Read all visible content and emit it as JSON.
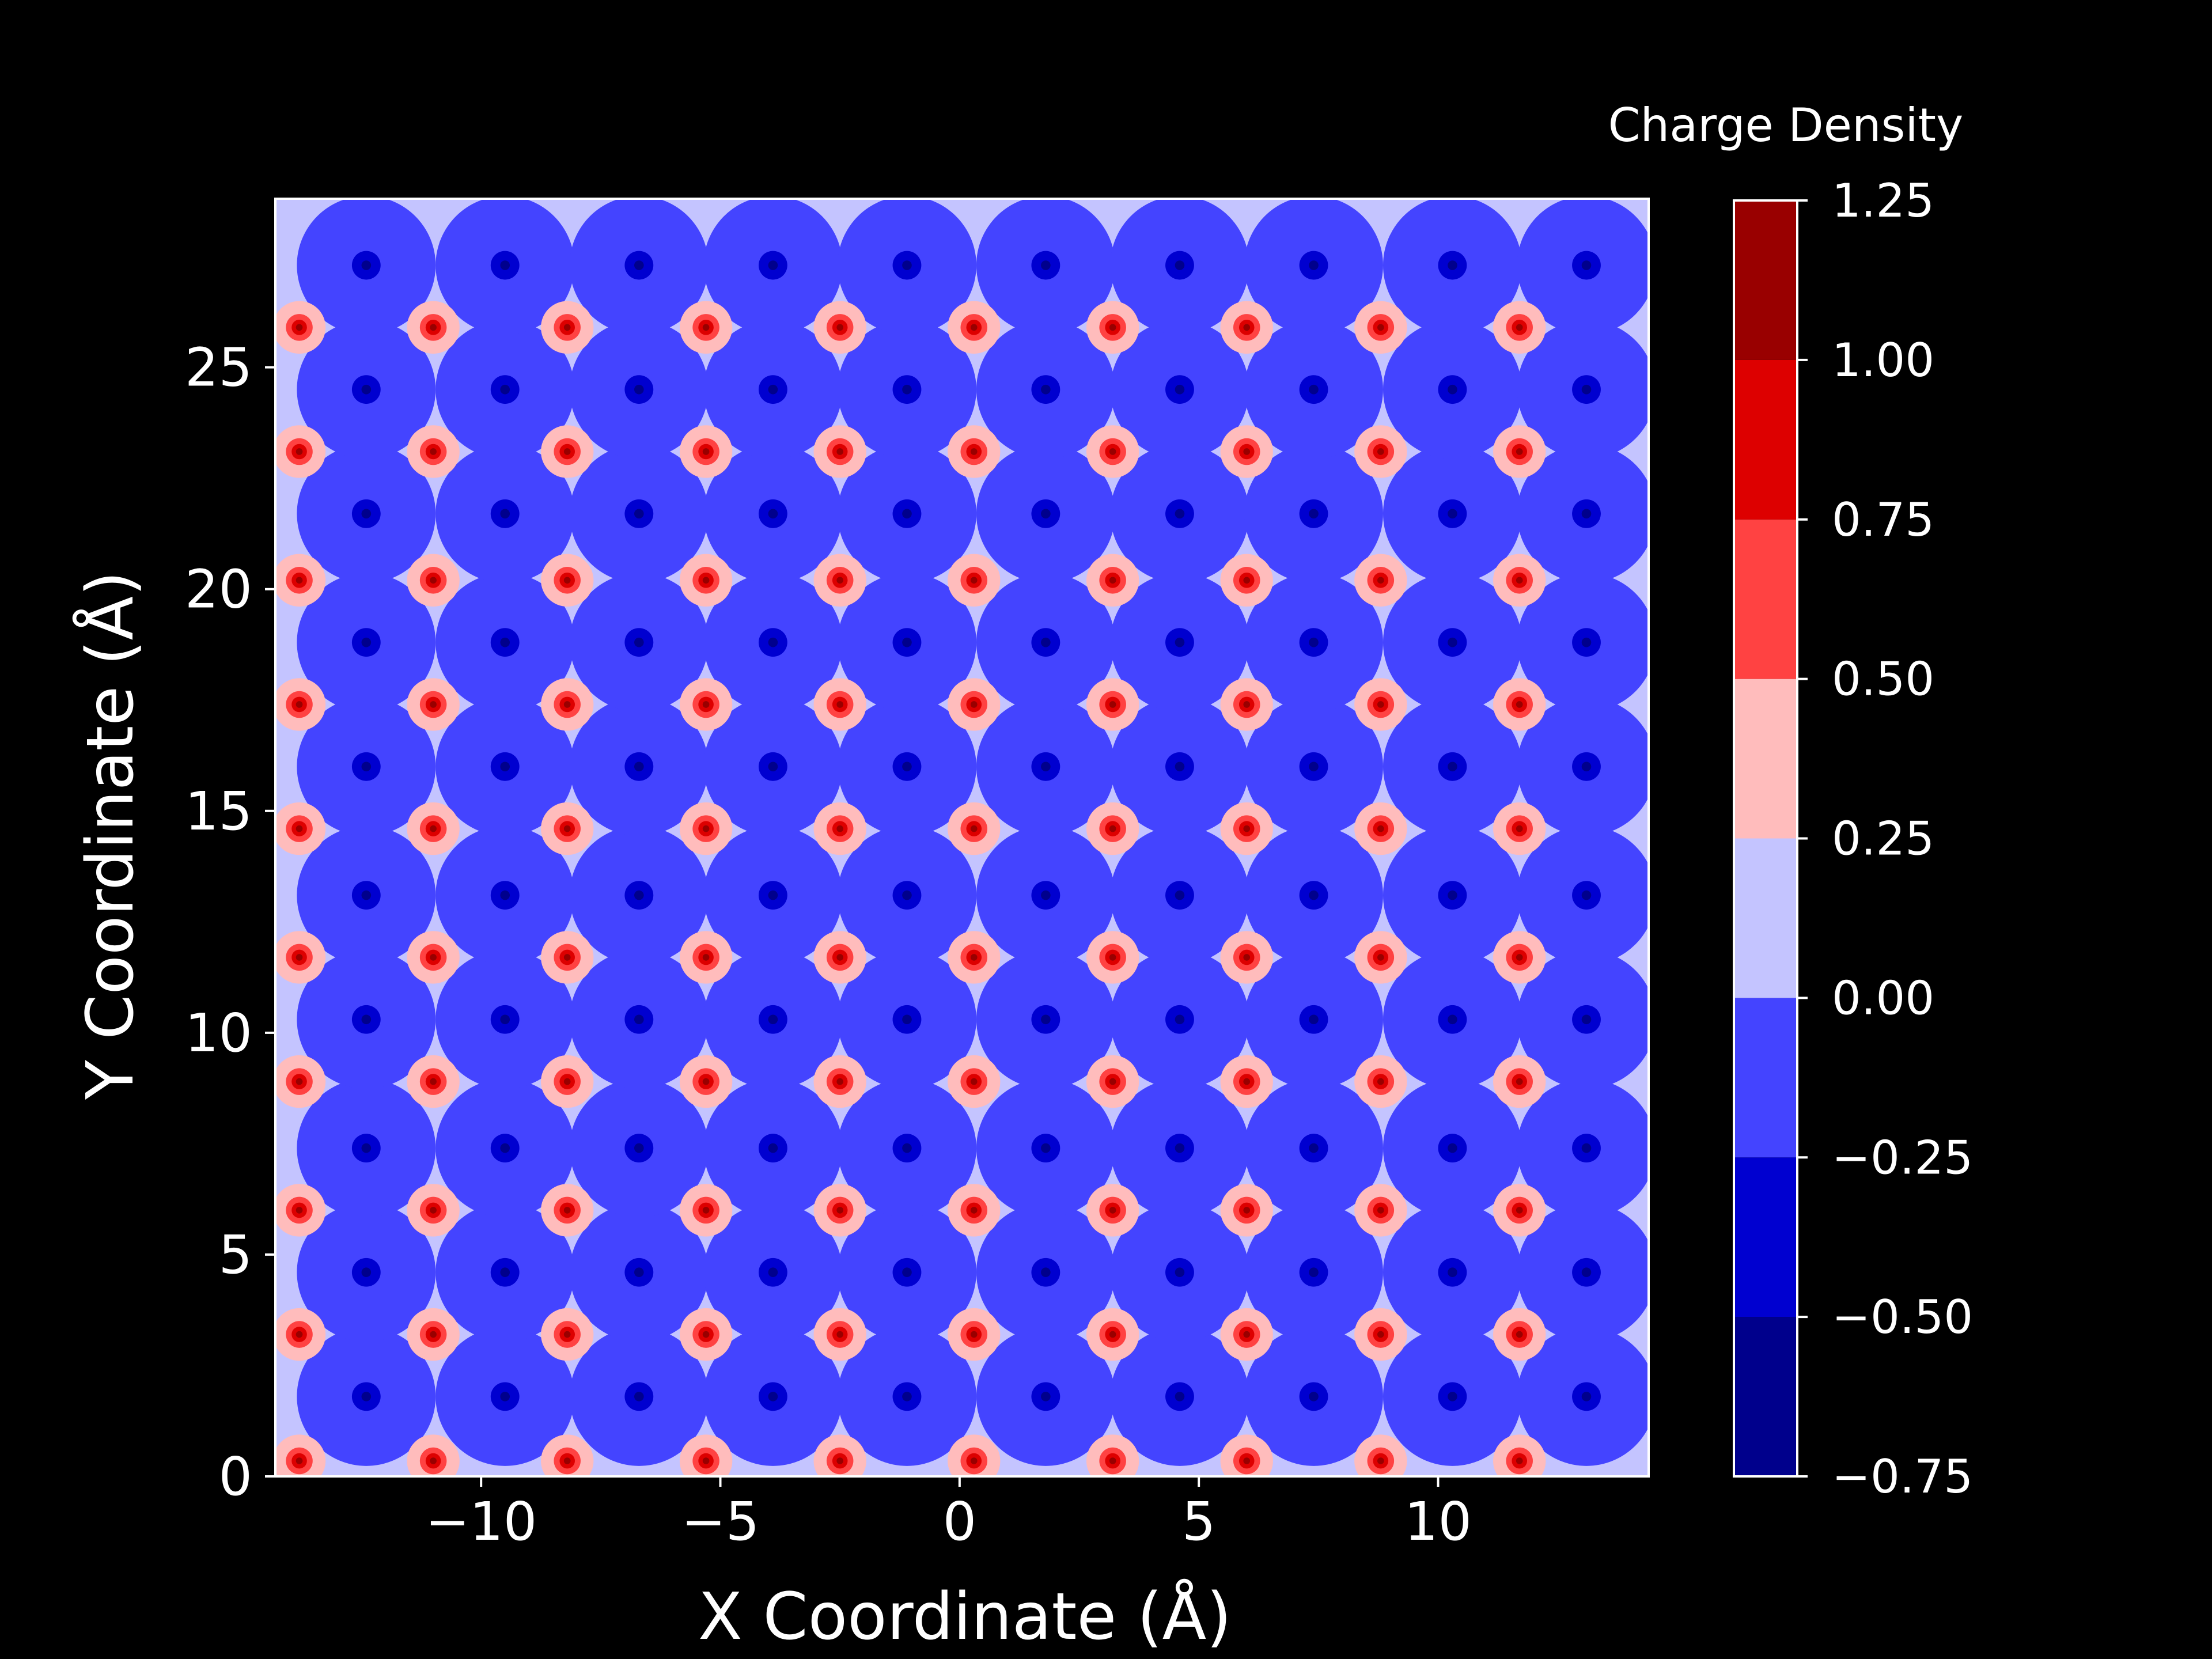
{
  "chart_data": {
    "type": "heatmap",
    "subtype": "filled-contour",
    "background": "#000000",
    "xlabel": "X Coordinate (Å)",
    "ylabel": "Y Coordinate (Å)",
    "xlim": [
      -14.3,
      14.4
    ],
    "ylim": [
      0,
      28.8
    ],
    "x_ticks": [
      -10,
      -5,
      0,
      5,
      10
    ],
    "x_tick_labels": [
      "−10",
      "−5",
      "0",
      "5",
      "10"
    ],
    "y_ticks": [
      0,
      5,
      10,
      15,
      20,
      25
    ],
    "y_tick_labels": [
      "0",
      "5",
      "10",
      "15",
      "20",
      "25"
    ],
    "grid": false,
    "colorbar": {
      "label": "Charge Density",
      "levels": [
        -0.75,
        -0.5,
        -0.25,
        0.0,
        0.25,
        0.5,
        0.75,
        1.0,
        1.25
      ],
      "tick_labels": [
        "−0.75",
        "−0.50",
        "−0.25",
        "0.00",
        "0.25",
        "0.50",
        "0.75",
        "1.00",
        "1.25"
      ],
      "colors": [
        "#00008c",
        "#0000d0",
        "#4444ff",
        "#c4c4ff",
        "#ffbcbc",
        "#ff4242",
        "#dd0000",
        "#990000"
      ]
    },
    "pattern": {
      "positive_sites": {
        "x": [
          -13.8,
          -11.0,
          -8.2,
          -5.3,
          -2.5,
          0.3,
          3.2,
          6.0,
          8.8,
          11.7
        ],
        "y": [
          0.35,
          3.2,
          6.0,
          8.9,
          11.7,
          14.6,
          17.4,
          20.2,
          23.1,
          25.9
        ],
        "peak_value": 1.0
      },
      "negative_sites": {
        "x": [
          -12.4,
          -9.5,
          -6.7,
          -3.9,
          -1.1,
          1.8,
          4.6,
          7.4,
          10.3,
          13.1
        ],
        "y": [
          1.8,
          4.6,
          7.4,
          10.3,
          13.1,
          16.0,
          18.8,
          21.7,
          24.5,
          27.3
        ],
        "peak_value": -0.6
      }
    }
  }
}
